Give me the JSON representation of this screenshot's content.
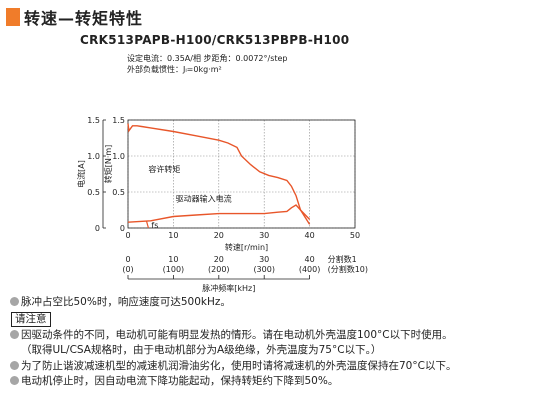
{
  "header": {
    "title": "转速—转矩特性",
    "model": "CRK513PAPB-H100/CRK513PBPB-H100",
    "conditions": [
      "设定电流：0.35A/相  步距角：0.0072°/step",
      "外部负载惯性：Jₗ=0kg·m²"
    ]
  },
  "chart_data": {
    "type": "line",
    "x_axis": {
      "label": "转速[r/min]",
      "range": [
        0,
        50
      ],
      "ticks": [
        "0",
        "10",
        "20",
        "30",
        "40",
        "50"
      ],
      "secondary_label": "分割数1",
      "secondary_ticks": [
        "(0)",
        "(100)",
        "(200)",
        "(300)",
        "(400)"
      ],
      "secondary_suffix": "(分割数10)",
      "pulse_label": "脉冲频率[kHz]"
    },
    "y_axis_torque": {
      "label": "转矩[N·m]",
      "range": [
        0,
        1.5
      ],
      "ticks": [
        "0",
        "0.5",
        "1.0",
        "1.5"
      ]
    },
    "y_axis_current": {
      "label": "电流[A]",
      "range": [
        0,
        1.5
      ],
      "ticks": [
        "0",
        "0.5",
        "1.0",
        "1.5"
      ]
    },
    "series": [
      {
        "name": "容许转矩",
        "color": "#e8562a",
        "x": [
          0,
          0.2,
          1,
          2,
          3,
          5,
          10,
          15,
          20,
          22,
          24,
          25,
          27,
          29,
          31,
          33,
          35,
          36,
          37,
          38,
          40
        ],
        "y": [
          1.45,
          1.35,
          1.42,
          1.42,
          1.41,
          1.39,
          1.34,
          1.28,
          1.22,
          1.18,
          1.12,
          1.0,
          0.88,
          0.78,
          0.73,
          0.7,
          0.66,
          0.58,
          0.45,
          0.25,
          0.05
        ]
      },
      {
        "name": "驱动器输入电流",
        "color": "#e8562a",
        "x": [
          0,
          5,
          10,
          15,
          20,
          25,
          30,
          33,
          35,
          36,
          37,
          38,
          40
        ],
        "y": [
          0.08,
          0.1,
          0.16,
          0.18,
          0.2,
          0.2,
          0.2,
          0.22,
          0.23,
          0.28,
          0.32,
          0.25,
          0.12
        ]
      }
    ],
    "markers": {
      "fs_label": "fs",
      "fs_x": 4.5
    },
    "grid": true
  },
  "notes": {
    "line1": "脉冲占空比50%时，响应速度可达500kHz。",
    "caution_label": "请注意",
    "line2": "因驱动条件的不同，电动机可能有明显发热的情形。请在电动机外壳温度100°C以下时使用。",
    "line3": "（取得UL/CSA规格时，由于电动机部分为A级绝缘，外壳温度为75°C以下。）",
    "line4": "为了防止谐波减速机型的减速机润滑油劣化，使用时请将减速机的外壳温度保持在70°C以下。",
    "line5": "电动机停止时，因自动电流下降功能起动，保持转矩约下降到50%。"
  }
}
